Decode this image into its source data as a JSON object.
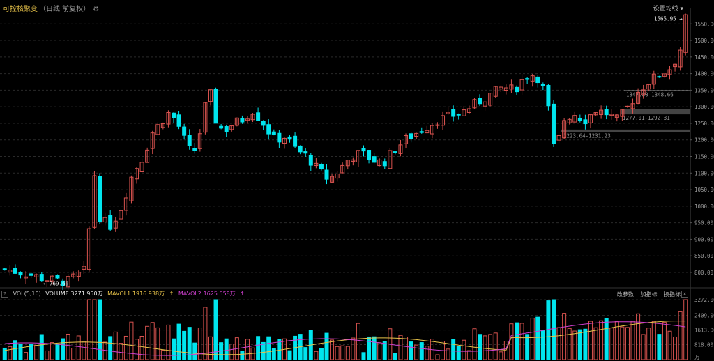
{
  "header": {
    "name": "可控核聚变",
    "sub": "（日线 前复权）",
    "ma_setting": "设置均线"
  },
  "vol_header": {
    "indicator": "VOL(5,10)",
    "volume": "VOLUME:3271.950万",
    "mavol1": "MAVOL1:1916.938万",
    "mavol2": "MAVOL2:1625.558万",
    "actions": [
      "改参数",
      "加指标",
      "换指标"
    ]
  },
  "colors": {
    "up": "#d9534f",
    "down": "#00e5ee",
    "ma1": "#e8c34a",
    "ma2": "#d040d0",
    "zone": "#555555"
  },
  "chart_data": {
    "type": "candlestick",
    "title": "可控核聚变",
    "ylim": [
      760,
      1580
    ],
    "price_ticks": [
      800,
      850,
      900,
      950,
      1000,
      1050,
      1100,
      1150,
      1200,
      1250,
      1300,
      1350,
      1400,
      1450,
      1500,
      1550
    ],
    "price_tick_labels": [
      "800.00",
      "850.00",
      "900.00",
      "950.00",
      "1000.00",
      "1050.00",
      "1100.00",
      "1150.00",
      "1200.00",
      "1250.00",
      "1300.00",
      "1350.00",
      "1400.00",
      "1450.00",
      "1500.00",
      "1550.00"
    ],
    "annotations": {
      "high": {
        "value": 1565.95,
        "label": "1565.95"
      },
      "low": {
        "value": 769.66,
        "label": "769.66"
      }
    },
    "zones": [
      {
        "low": 1347.8,
        "high": 1348.66,
        "label": "1347.80-1348.66"
      },
      {
        "low": 1277.01,
        "high": 1292.31,
        "label": "1277.01-1292.31"
      },
      {
        "low": 1223.64,
        "high": 1231.23,
        "label": "1223.64-1231.23"
      }
    ],
    "vol_ylim": [
      0,
      3272
    ],
    "vol_ticks": [
      818,
      1613,
      2409,
      3272
    ],
    "vol_tick_labels": [
      "818.00",
      "1613.00",
      "2409.00",
      "3272.00"
    ],
    "vol_unit_label": "万"
  }
}
